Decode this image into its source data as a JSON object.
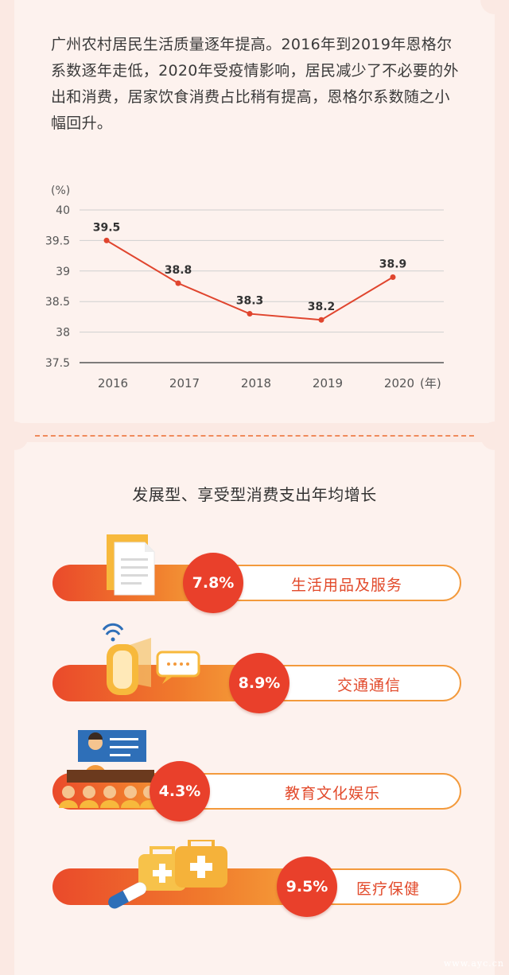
{
  "intro_text": "广州农村居民生活质量逐年提高。2016年到2019年恩格尔系数逐年走低，2020年受疫情影响，居民减少了不必要的外出和消费，居家饮食消费占比稍有提高，恩格尔系数随之小幅回升。",
  "chart_data": {
    "type": "line",
    "x": [
      "2016",
      "2017",
      "2018",
      "2019",
      "2020"
    ],
    "values": [
      39.5,
      38.8,
      38.3,
      38.2,
      38.9
    ],
    "data_labels": [
      "39.5",
      "38.8",
      "38.3",
      "38.2",
      "38.9"
    ],
    "yticks": [
      "40",
      "39.5",
      "39",
      "38.5",
      "38",
      "37.5"
    ],
    "ylim": [
      37.5,
      40
    ],
    "ylabel": "(%)",
    "xlabel": "(年)",
    "grid": true,
    "line_color": "#e0452e"
  },
  "section2": {
    "title": "发展型、享受型消费支出年均增长",
    "items": [
      {
        "value": "7.8%",
        "label": "生活用品及服务",
        "icon": "document-icon"
      },
      {
        "value": "8.9%",
        "label": "交通通信",
        "icon": "phone-chat-icon"
      },
      {
        "value": "4.3%",
        "label": "教育文化娱乐",
        "icon": "classroom-icon"
      },
      {
        "value": "9.5%",
        "label": "医疗保健",
        "icon": "medical-kit-icon"
      }
    ]
  },
  "watermark": "www.ayc.cn",
  "colors": {
    "accent": "#e9402b",
    "orange": "#f39a3c",
    "background": "#fbe9e3"
  }
}
